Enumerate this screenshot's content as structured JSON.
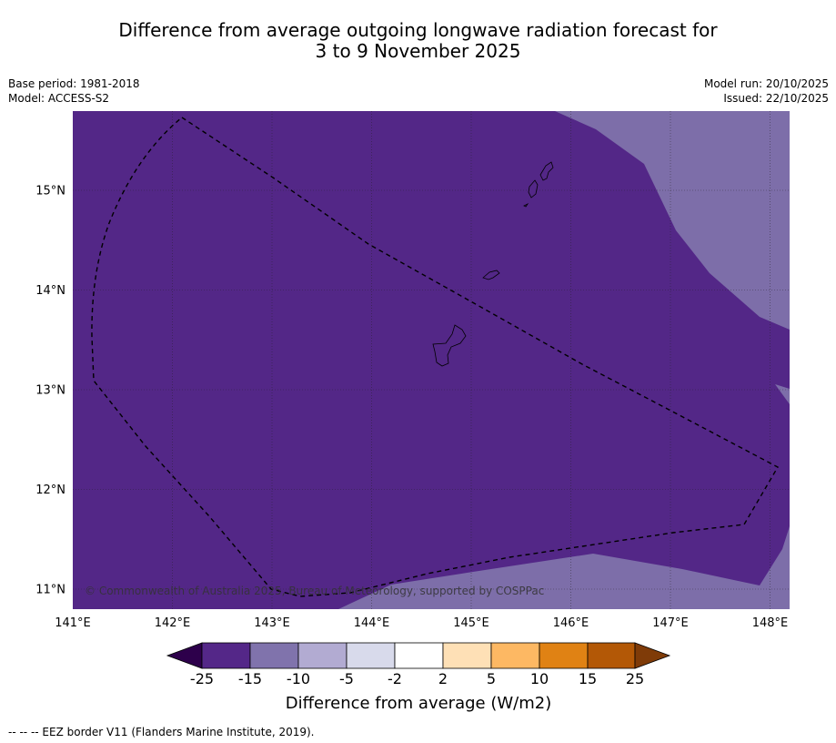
{
  "title": {
    "line1": "Difference from average outgoing longwave radiation forecast for",
    "line2": "3 to 9 November 2025"
  },
  "meta": {
    "base_period": "Base period: 1981-2018",
    "model": "Model: ACCESS-S2",
    "model_run": "Model run: 20/10/2025",
    "issued": "Issued: 22/10/2025"
  },
  "map": {
    "lon_labels": [
      "141°E",
      "142°E",
      "143°E",
      "144°E",
      "145°E",
      "146°E",
      "147°E",
      "148°E"
    ],
    "lat_labels": [
      "15°N",
      "14°N",
      "13°N",
      "12°N",
      "11°N"
    ],
    "copyright": "© Commonwealth of Australia 2025, Bureau of Meteorology, supported by COSPPac",
    "colors": {
      "dominant": "#532787",
      "secondary": "#7d6ea9"
    }
  },
  "colorbar": {
    "title": "Difference from average (W/m2)",
    "ticks": [
      "-25",
      "-15",
      "-10",
      "-5",
      "-2",
      "2",
      "5",
      "10",
      "15",
      "25"
    ],
    "colors": [
      "#2d004b",
      "#542788",
      "#8073ac",
      "#b2abd2",
      "#d8daeb",
      "#ffffff",
      "#fee0b6",
      "#fdb863",
      "#e08214",
      "#b35806",
      "#7f3b08"
    ]
  },
  "footnote": "--  --  -- EEZ border V11 (Flanders Marine Institute, 2019)."
}
